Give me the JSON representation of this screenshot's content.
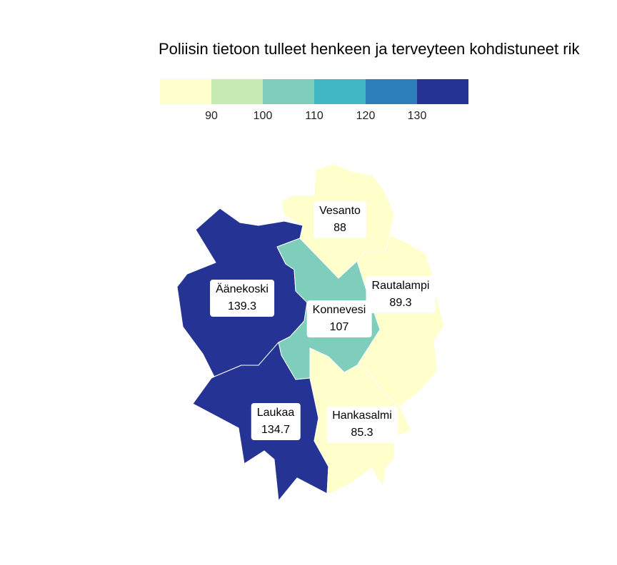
{
  "title": "Poliisin tietoon tulleet henkeen ja terveyteen kohdistuneet rik",
  "legend": {
    "colors": [
      "#ffffcc",
      "#c7e9b4",
      "#7fcdbb",
      "#41b6c4",
      "#2c7fb8",
      "#253494"
    ],
    "ticks": [
      "90",
      "100",
      "110",
      "120",
      "130"
    ]
  },
  "regions": [
    {
      "name": "Vesanto",
      "value": "88",
      "color": "#ffffcc"
    },
    {
      "name": "Rautalampi",
      "value": "89.3",
      "color": "#ffffcc"
    },
    {
      "name": "Äänekoski",
      "value": "139.3",
      "color": "#253494"
    },
    {
      "name": "Konnevesi",
      "value": "107",
      "color": "#7fcdbb"
    },
    {
      "name": "Laukaa",
      "value": "134.7",
      "color": "#253494"
    },
    {
      "name": "Hankasalmi",
      "value": "85.3",
      "color": "#ffffcc"
    }
  ]
}
